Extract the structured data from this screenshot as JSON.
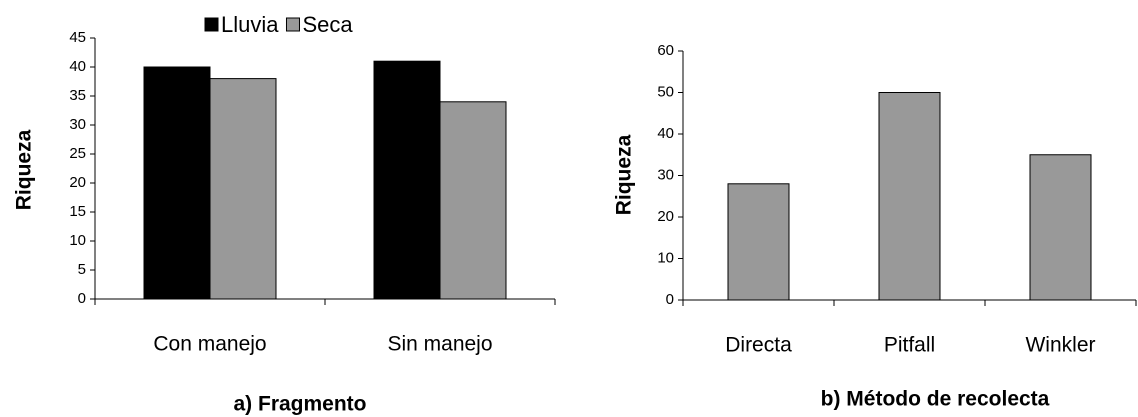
{
  "chart_data": [
    {
      "type": "bar",
      "y_label": "Riqueza",
      "x_label": "a) Fragmento",
      "categories": [
        "Con manejo",
        "Sin manejo"
      ],
      "series": [
        {
          "name": "Lluvia",
          "color": "#000000",
          "values": [
            40,
            41
          ]
        },
        {
          "name": "Seca",
          "color": "#999999",
          "values": [
            38,
            34
          ]
        }
      ],
      "ylim": [
        0,
        45
      ],
      "yticks": [
        0,
        5,
        10,
        15,
        20,
        25,
        30,
        35,
        40,
        45
      ],
      "legend": "top"
    },
    {
      "type": "bar",
      "y_label": "Riqueza",
      "x_label": "b) Método de recolecta",
      "categories": [
        "Directa",
        "Pitfall",
        "Winkler"
      ],
      "values": [
        28,
        50,
        35
      ],
      "color": "#999999",
      "ylim": [
        0,
        60
      ],
      "yticks": [
        0,
        10,
        20,
        30,
        40,
        50,
        60
      ]
    }
  ]
}
